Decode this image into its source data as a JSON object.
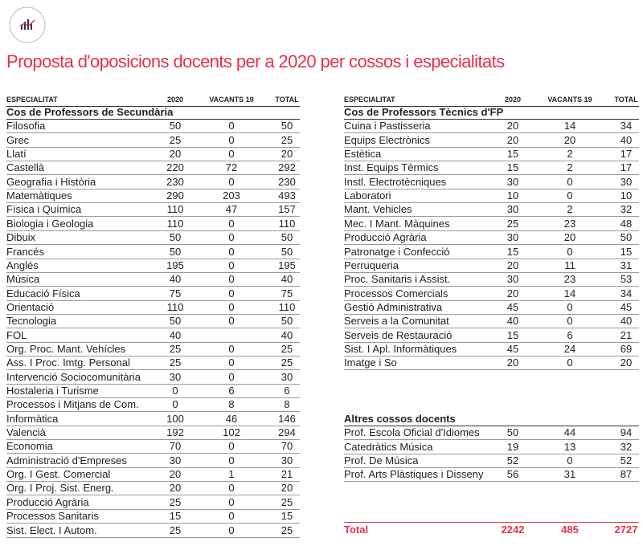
{
  "title": "Proposta d'oposicions docents per a 2020 per cossos i especialitats",
  "left_table": {
    "headers": [
      "ESPECIALITAT",
      "2020",
      "VACANTS 19",
      "TOTAL"
    ],
    "section": "Cos de Professors de Secundària",
    "rows": [
      [
        "Filosofia",
        50,
        0,
        50
      ],
      [
        "Grec",
        25,
        0,
        25
      ],
      [
        "Llatí",
        20,
        0,
        20
      ],
      [
        "Castellà",
        220,
        72,
        292
      ],
      [
        "Geografia i Història",
        230,
        0,
        230
      ],
      [
        "Matemàtiques",
        290,
        203,
        493
      ],
      [
        "Física i Química",
        110,
        47,
        157
      ],
      [
        "Biologia i Geologia",
        110,
        0,
        110
      ],
      [
        "Dibuix",
        50,
        0,
        50
      ],
      [
        "Francés",
        50,
        0,
        50
      ],
      [
        "Anglés",
        195,
        0,
        195
      ],
      [
        "Música",
        40,
        0,
        40
      ],
      [
        "Educació Física",
        75,
        0,
        75
      ],
      [
        "Orientació",
        110,
        0,
        110
      ],
      [
        "Tecnologia",
        50,
        0,
        50
      ],
      [
        "FOL",
        40,
        null,
        40
      ],
      [
        "Org. Proc. Mant. Vehícles",
        25,
        0,
        25
      ],
      [
        "Ass. I Proc. Imtg. Personal",
        25,
        0,
        25
      ],
      [
        "Intervenció Sociocomunitària",
        30,
        0,
        30
      ],
      [
        "Hostaleria i Turisme",
        0,
        6,
        6
      ],
      [
        "Processos i Mitjans de Com.",
        0,
        8,
        8
      ],
      [
        "Informàtica",
        100,
        46,
        146
      ],
      [
        "Valencià",
        192,
        102,
        294
      ],
      [
        "Economia",
        70,
        0,
        70
      ],
      [
        "Administració d'Empreses",
        30,
        0,
        30
      ],
      [
        "Org. I Gest. Comercial",
        20,
        1,
        21
      ],
      [
        "Org. I Proj. Sist. Energ.",
        20,
        0,
        20
      ],
      [
        "Producció Agrària",
        25,
        0,
        25
      ],
      [
        "Processos Sanitaris",
        15,
        0,
        15
      ],
      [
        "Sist. Elect. I Autom.",
        25,
        0,
        25
      ]
    ]
  },
  "right_table": {
    "headers": [
      "ESPECIALITAT",
      "2020",
      "VACANTS 19",
      "TOTAL"
    ],
    "sections": [
      {
        "name": "Cos de Professors Tècnics d'FP",
        "rows": [
          [
            "Cuina i Pastisseria",
            20,
            14,
            34
          ],
          [
            "Equips Electrònics",
            20,
            20,
            40
          ],
          [
            "Estètica",
            15,
            2,
            17
          ],
          [
            "Inst. Equips Tèrmics",
            15,
            2,
            17
          ],
          [
            "Instl. Electrotècniques",
            30,
            0,
            30
          ],
          [
            "Laboratori",
            10,
            0,
            10
          ],
          [
            "Mant. Vehicles",
            30,
            2,
            32
          ],
          [
            "Mec. I Mant. Màquines",
            25,
            23,
            48
          ],
          [
            "Producció Agrària",
            30,
            20,
            50
          ],
          [
            "Patronatge i Confecció",
            15,
            0,
            15
          ],
          [
            "Perruqueria",
            20,
            11,
            31
          ],
          [
            "Proc. Sanitaris i Assist.",
            30,
            23,
            53
          ],
          [
            "Processos Comercials",
            20,
            14,
            34
          ],
          [
            "Gestió Administrativa",
            45,
            0,
            45
          ],
          [
            "Serveis a la Comunitat",
            40,
            0,
            40
          ],
          [
            "Serveis de Restauració",
            15,
            6,
            21
          ],
          [
            "Sist. I Apl. Informàtiques",
            45,
            24,
            69
          ],
          [
            "Imatge i So",
            20,
            0,
            20
          ]
        ]
      },
      {
        "name": "Altres cossos docents",
        "rows": [
          [
            "Prof. Escola Oficial d'Idiomes",
            50,
            44,
            94
          ],
          [
            "Catedràtics Música",
            19,
            13,
            32
          ],
          [
            "Prof. De Música",
            52,
            0,
            52
          ],
          [
            "Prof. Arts Plàstiques i Disseny",
            56,
            31,
            87
          ]
        ]
      }
    ]
  },
  "total": [
    "Total",
    2242,
    485,
    2727
  ]
}
